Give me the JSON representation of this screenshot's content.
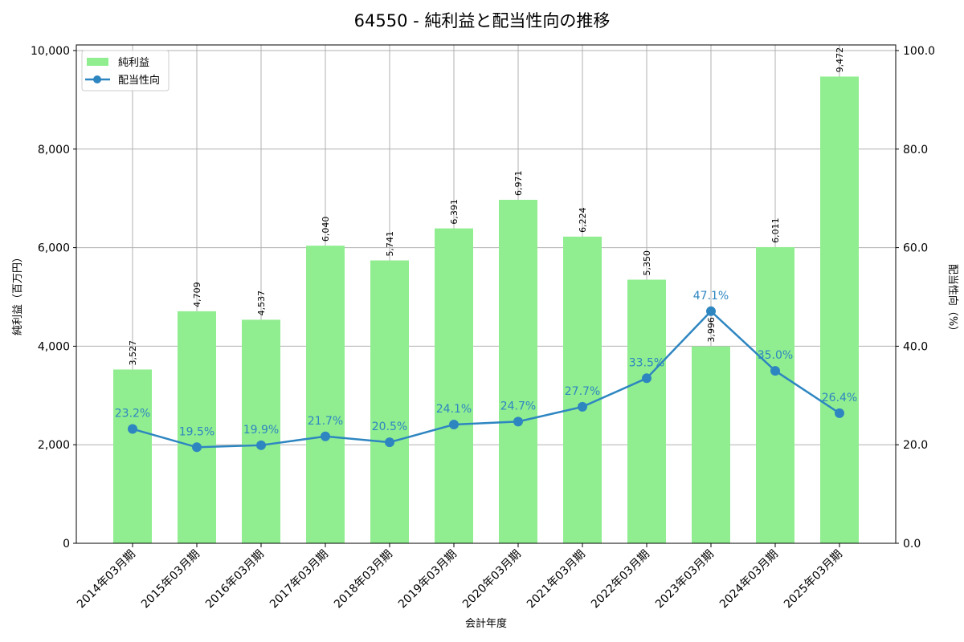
{
  "chart_data": {
    "type": "bar+line",
    "title": "64550 - 純利益と配当性向の推移",
    "xlabel": "会計年度",
    "ylabel": "純利益（百万円）",
    "y2label": "配当性向（%）",
    "categories": [
      "2014年03月期",
      "2015年03月期",
      "2016年03月期",
      "2017年03月期",
      "2018年03月期",
      "2019年03月期",
      "2020年03月期",
      "2021年03月期",
      "2022年03月期",
      "2023年03月期",
      "2024年03月期",
      "2025年03月期"
    ],
    "series": [
      {
        "name": "純利益",
        "type": "bar",
        "axis": "left",
        "color": "#90ee90",
        "values": [
          3527,
          4709,
          4537,
          6040,
          5741,
          6391,
          6971,
          6224,
          5350,
          3996,
          6011,
          9472
        ],
        "labels": [
          "3,527",
          "4,709",
          "4,537",
          "6,040",
          "5,741",
          "6,391",
          "6,971",
          "6,224",
          "5,350",
          "3,996",
          "6,011",
          "9,472"
        ]
      },
      {
        "name": "配当性向",
        "type": "line",
        "axis": "right",
        "color": "#2e86c1",
        "values": [
          23.2,
          19.5,
          19.9,
          21.7,
          20.5,
          24.1,
          24.7,
          27.7,
          33.5,
          47.1,
          35.0,
          26.4
        ],
        "labels": [
          "23.2%",
          "19.5%",
          "19.9%",
          "21.7%",
          "20.5%",
          "24.1%",
          "24.7%",
          "27.7%",
          "33.5%",
          "47.1%",
          "35.0%",
          "26.4%"
        ]
      }
    ],
    "ylim": [
      0,
      10000
    ],
    "y2lim": [
      0,
      100
    ],
    "yticks": [
      "0",
      "2,000",
      "4,000",
      "6,000",
      "8,000",
      "10,000"
    ],
    "y2ticks": [
      "0.0",
      "20.0",
      "40.0",
      "60.0",
      "80.0",
      "100.0"
    ],
    "grid": true,
    "legend_position": "upper left"
  }
}
